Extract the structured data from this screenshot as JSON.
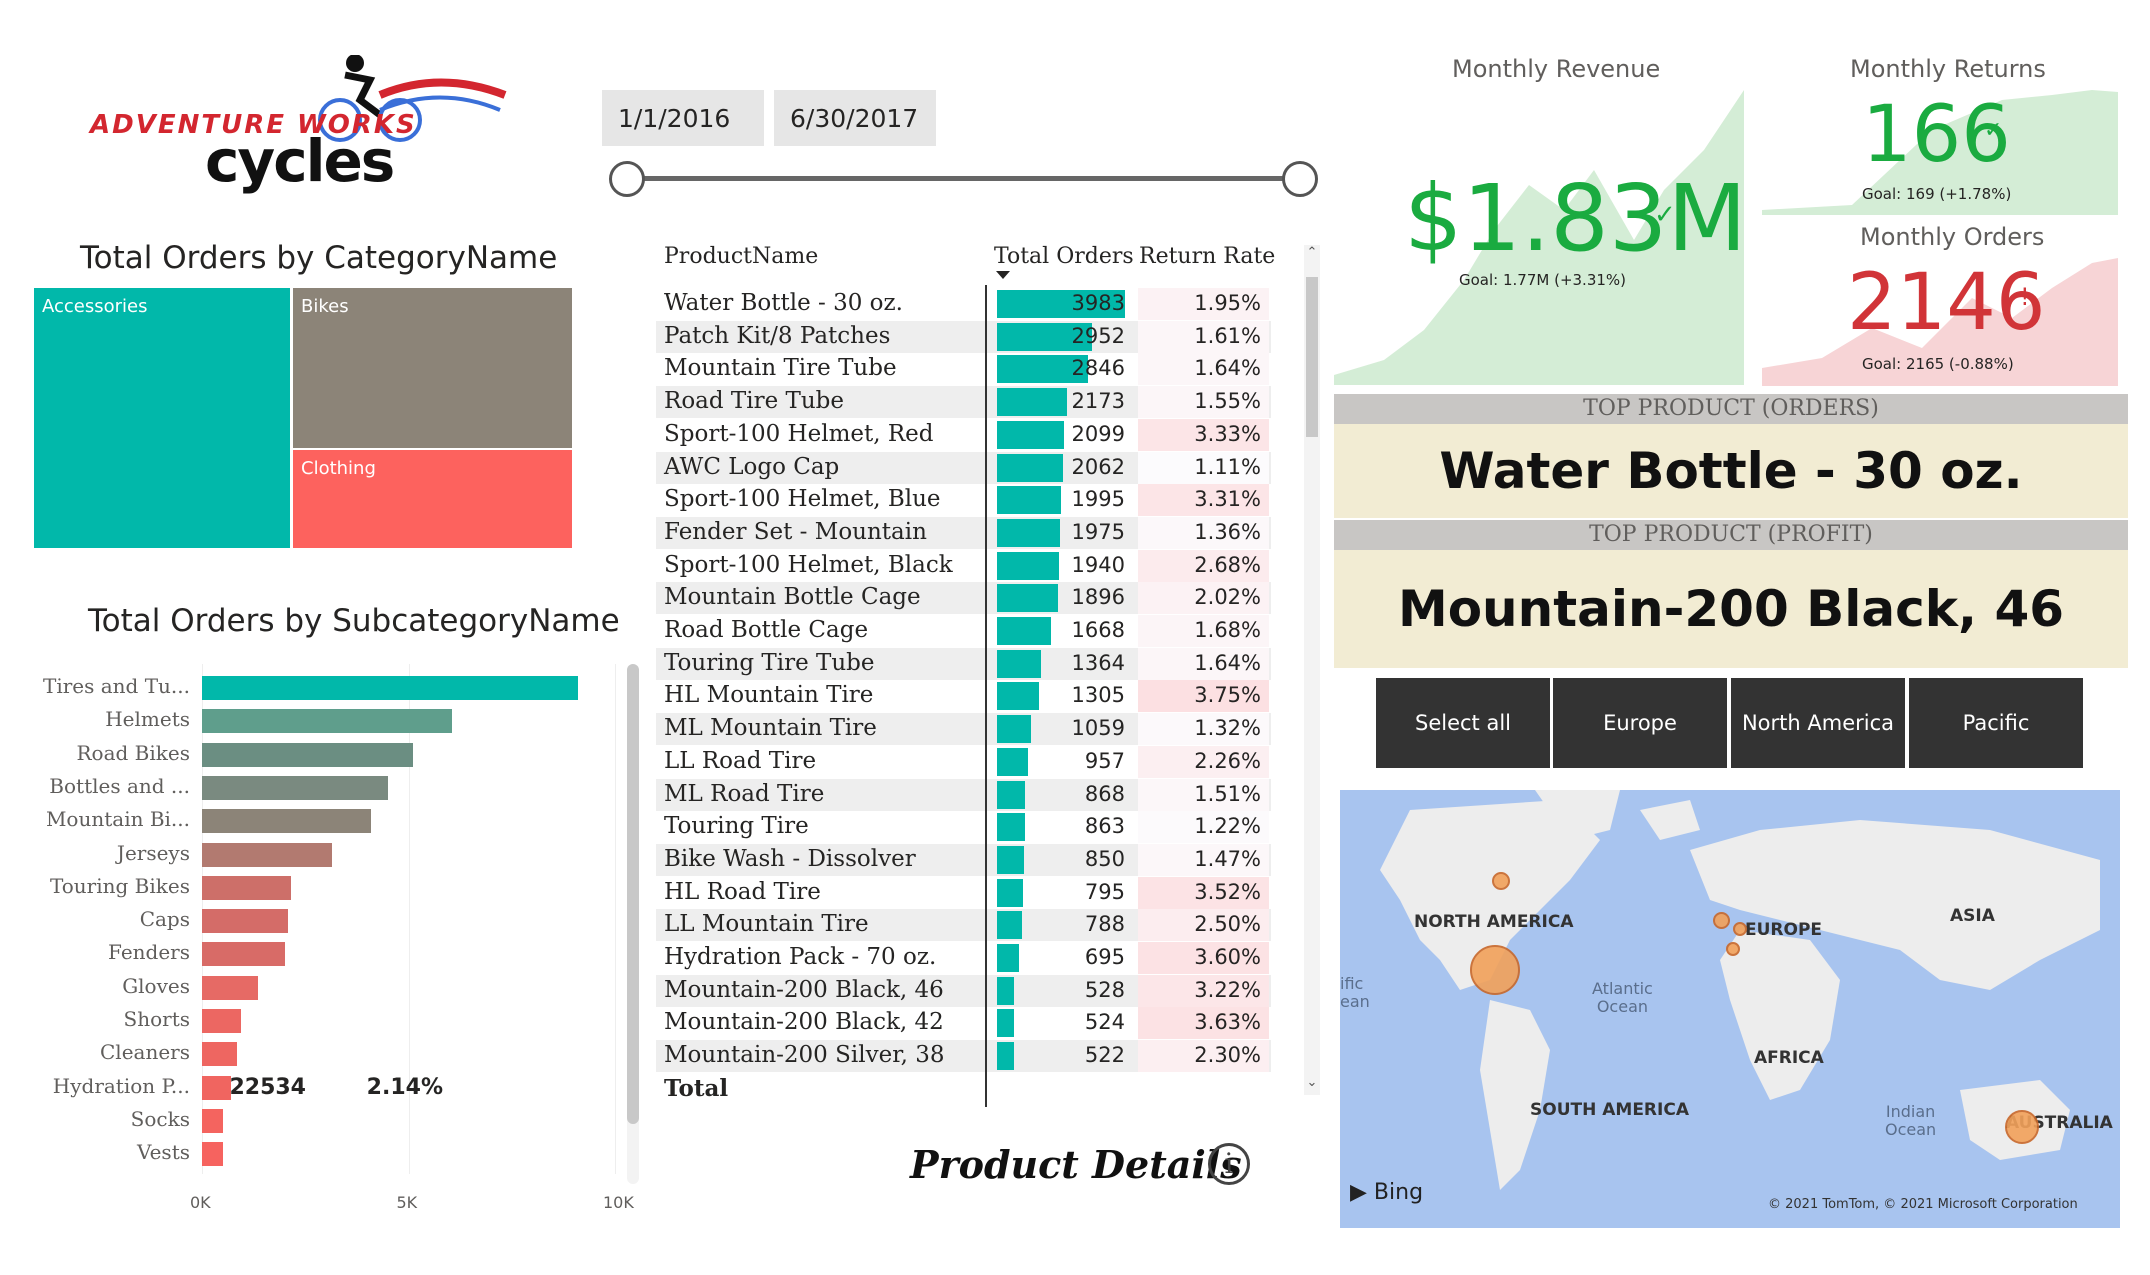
{
  "logo": {
    "line1": "ADVENTURE WORKS",
    "line2": "cycles"
  },
  "date_slicer": {
    "start": "1/1/2016",
    "end": "6/30/2017"
  },
  "category_chart": {
    "title": "Total Orders by CategoryName",
    "cells": [
      {
        "label": "Accessories",
        "color": "#01b8aa"
      },
      {
        "label": "Bikes",
        "color": "#8c8478"
      },
      {
        "label": "Clothing",
        "color": "#fd625e"
      }
    ]
  },
  "subcategory_chart": {
    "title": "Total Orders by SubcategoryName",
    "tick_labels": [
      "0K",
      "5K",
      "10K"
    ]
  },
  "chart_data": {
    "type": "bar",
    "title": "Total Orders by SubcategoryName",
    "categories": [
      "Tires and Tu...",
      "Helmets",
      "Road Bikes",
      "Bottles and ...",
      "Mountain Bi...",
      "Jerseys",
      "Touring Bikes",
      "Caps",
      "Fenders",
      "Gloves",
      "Shorts",
      "Cleaners",
      "Hydration P...",
      "Socks",
      "Vests"
    ],
    "values": [
      9100,
      6050,
      5100,
      4500,
      4100,
      3150,
      2150,
      2080,
      2000,
      1350,
      950,
      850,
      700,
      520,
      500
    ],
    "colors": [
      "#01b8aa",
      "#5f9e8c",
      "#6b8e82",
      "#7a8a80",
      "#8c8478",
      "#b27a70",
      "#cd6f69",
      "#d46c68",
      "#d86b67",
      "#e66a65",
      "#ec6762",
      "#ee6661",
      "#f06560",
      "#f4645f",
      "#f6635f"
    ],
    "xlim": [
      0,
      10000
    ],
    "grid": true
  },
  "table": {
    "headers": {
      "name": "ProductName",
      "orders": "Total Orders",
      "rate": "Return Rate"
    },
    "max_orders": 3983,
    "rows": [
      {
        "name": "Water Bottle - 30 oz.",
        "orders": "3983",
        "value": 3983,
        "rate": "1.95%",
        "rate_value": 1.95
      },
      {
        "name": "Patch Kit/8 Patches",
        "orders": "2952",
        "value": 2952,
        "rate": "1.61%",
        "rate_value": 1.61
      },
      {
        "name": "Mountain Tire Tube",
        "orders": "2846",
        "value": 2846,
        "rate": "1.64%",
        "rate_value": 1.64
      },
      {
        "name": "Road Tire Tube",
        "orders": "2173",
        "value": 2173,
        "rate": "1.55%",
        "rate_value": 1.55
      },
      {
        "name": "Sport-100 Helmet, Red",
        "orders": "2099",
        "value": 2099,
        "rate": "3.33%",
        "rate_value": 3.33
      },
      {
        "name": "AWC Logo Cap",
        "orders": "2062",
        "value": 2062,
        "rate": "1.11%",
        "rate_value": 1.11
      },
      {
        "name": "Sport-100 Helmet, Blue",
        "orders": "1995",
        "value": 1995,
        "rate": "3.31%",
        "rate_value": 3.31
      },
      {
        "name": "Fender Set - Mountain",
        "orders": "1975",
        "value": 1975,
        "rate": "1.36%",
        "rate_value": 1.36
      },
      {
        "name": "Sport-100 Helmet, Black",
        "orders": "1940",
        "value": 1940,
        "rate": "2.68%",
        "rate_value": 2.68
      },
      {
        "name": "Mountain Bottle Cage",
        "orders": "1896",
        "value": 1896,
        "rate": "2.02%",
        "rate_value": 2.02
      },
      {
        "name": "Road Bottle Cage",
        "orders": "1668",
        "value": 1668,
        "rate": "1.68%",
        "rate_value": 1.68
      },
      {
        "name": "Touring Tire Tube",
        "orders": "1364",
        "value": 1364,
        "rate": "1.64%",
        "rate_value": 1.64
      },
      {
        "name": "HL Mountain Tire",
        "orders": "1305",
        "value": 1305,
        "rate": "3.75%",
        "rate_value": 3.75
      },
      {
        "name": "ML Mountain Tire",
        "orders": "1059",
        "value": 1059,
        "rate": "1.32%",
        "rate_value": 1.32
      },
      {
        "name": "LL Road Tire",
        "orders": "957",
        "value": 957,
        "rate": "2.26%",
        "rate_value": 2.26
      },
      {
        "name": "ML Road Tire",
        "orders": "868",
        "value": 868,
        "rate": "1.51%",
        "rate_value": 1.51
      },
      {
        "name": "Touring Tire",
        "orders": "863",
        "value": 863,
        "rate": "1.22%",
        "rate_value": 1.22
      },
      {
        "name": "Bike Wash - Dissolver",
        "orders": "850",
        "value": 850,
        "rate": "1.47%",
        "rate_value": 1.47
      },
      {
        "name": "HL Road Tire",
        "orders": "795",
        "value": 795,
        "rate": "3.52%",
        "rate_value": 3.52
      },
      {
        "name": "LL Mountain Tire",
        "orders": "788",
        "value": 788,
        "rate": "2.50%",
        "rate_value": 2.5
      },
      {
        "name": "Hydration Pack - 70 oz.",
        "orders": "695",
        "value": 695,
        "rate": "3.60%",
        "rate_value": 3.6
      },
      {
        "name": "Mountain-200 Black, 46",
        "orders": "528",
        "value": 528,
        "rate": "3.22%",
        "rate_value": 3.22
      },
      {
        "name": "Mountain-200 Black, 42",
        "orders": "524",
        "value": 524,
        "rate": "3.63%",
        "rate_value": 3.63
      },
      {
        "name": "Mountain-200 Silver, 38",
        "orders": "522",
        "value": 522,
        "rate": "2.30%",
        "rate_value": 2.3
      }
    ],
    "total": {
      "label": "Total",
      "orders": "22534",
      "rate": "2.14%"
    }
  },
  "product_details": {
    "label": "Product Details",
    "icon": "info-icon"
  },
  "kpis": {
    "revenue": {
      "title": "Monthly Revenue",
      "value": "$1.83M",
      "status": "✓",
      "goal": "Goal: 1.77M (+3.31%)",
      "color": "#1aab40",
      "fill": "#d4edd6"
    },
    "returns": {
      "title": "Monthly Returns",
      "value": "166",
      "status": "✓",
      "goal": "Goal: 169 (+1.78%)",
      "color": "#1aab40",
      "fill": "#d4edd6"
    },
    "orders": {
      "title": "Monthly Orders",
      "value": "2146",
      "status": "!",
      "goal": "Goal: 2165 (-0.88%)",
      "color": "#d13438",
      "fill": "#f7d4d6"
    }
  },
  "top_products": {
    "orders": {
      "header": "TOP PRODUCT (ORDERS)",
      "value": "Water Bottle - 30 oz."
    },
    "profit": {
      "header": "TOP PRODUCT (PROFIT)",
      "value": "Mountain-200 Black, 46"
    }
  },
  "region_slicer": {
    "buttons": [
      "Select all",
      "Europe",
      "North America",
      "Pacific"
    ]
  },
  "map": {
    "labels": [
      "NORTH AMERICA",
      "EUROPE",
      "ASIA",
      "AFRICA",
      "SOUTH AMERICA",
      "AUSTRALIA"
    ],
    "oceans": {
      "atlantic": "Atlantic\nOcean",
      "indian": "Indian\nOcean",
      "pacific": "ific\nean"
    },
    "attribution": "© 2021 TomTom, © 2021 Microsoft Corporation",
    "bing": "Bing",
    "bubble_color": "#f2a15a"
  }
}
